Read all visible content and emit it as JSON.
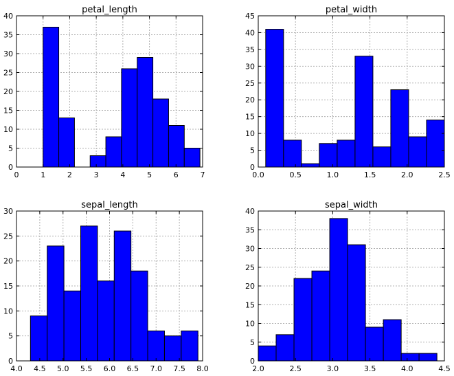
{
  "chart_data": [
    {
      "type": "bar",
      "title": "petal_length",
      "xlabel": "",
      "ylabel": "",
      "bin_edges": [
        1.0,
        1.59,
        2.18,
        2.77,
        3.36,
        3.95,
        4.54,
        5.13,
        5.72,
        6.31,
        6.9
      ],
      "values": [
        37,
        13,
        0,
        3,
        8,
        26,
        29,
        18,
        11,
        5
      ],
      "xlim": [
        0,
        7
      ],
      "ylim": [
        0,
        40
      ],
      "xticks": [
        0,
        1,
        2,
        3,
        4,
        5,
        6,
        7
      ],
      "xtick_labels": [
        "0",
        "1",
        "2",
        "3",
        "4",
        "5",
        "6",
        "7"
      ],
      "yticks": [
        0,
        5,
        10,
        15,
        20,
        25,
        30,
        35,
        40
      ],
      "ytick_labels": [
        "0",
        "5",
        "10",
        "15",
        "20",
        "25",
        "30",
        "35",
        "40"
      ],
      "grid": true
    },
    {
      "type": "bar",
      "title": "petal_width",
      "xlabel": "",
      "ylabel": "",
      "bin_edges": [
        0.1,
        0.34,
        0.58,
        0.82,
        1.06,
        1.3,
        1.54,
        1.78,
        2.02,
        2.26,
        2.5
      ],
      "values": [
        41,
        8,
        1,
        7,
        8,
        33,
        6,
        23,
        9,
        14
      ],
      "xlim": [
        0,
        2.5
      ],
      "ylim": [
        0,
        45
      ],
      "xticks": [
        0,
        0.5,
        1.0,
        1.5,
        2.0,
        2.5
      ],
      "xtick_labels": [
        "0.0",
        "0.5",
        "1.0",
        "1.5",
        "2.0",
        "2.5"
      ],
      "yticks": [
        0,
        5,
        10,
        15,
        20,
        25,
        30,
        35,
        40,
        45
      ],
      "ytick_labels": [
        "0",
        "5",
        "10",
        "15",
        "20",
        "25",
        "30",
        "35",
        "40",
        "45"
      ],
      "grid": true
    },
    {
      "type": "bar",
      "title": "sepal_length",
      "xlabel": "",
      "ylabel": "",
      "bin_edges": [
        4.3,
        4.66,
        5.02,
        5.38,
        5.74,
        6.1,
        6.46,
        6.82,
        7.18,
        7.54,
        7.9
      ],
      "values": [
        9,
        23,
        14,
        27,
        16,
        26,
        18,
        6,
        5,
        6
      ],
      "xlim": [
        4.0,
        8.0
      ],
      "ylim": [
        0,
        30
      ],
      "xticks": [
        4.0,
        4.5,
        5.0,
        5.5,
        6.0,
        6.5,
        7.0,
        7.5,
        8.0
      ],
      "xtick_labels": [
        "4.0",
        "4.5",
        "5.0",
        "5.5",
        "6.0",
        "6.5",
        "7.0",
        "7.5",
        "8.0"
      ],
      "yticks": [
        0,
        5,
        10,
        15,
        20,
        25,
        30
      ],
      "ytick_labels": [
        "0",
        "5",
        "10",
        "15",
        "20",
        "25",
        "30"
      ],
      "grid": true
    },
    {
      "type": "bar",
      "title": "sepal_width",
      "xlabel": "",
      "ylabel": "",
      "bin_edges": [
        2.0,
        2.24,
        2.48,
        2.72,
        2.96,
        3.2,
        3.44,
        3.68,
        3.92,
        4.16,
        4.4
      ],
      "values": [
        4,
        7,
        22,
        24,
        38,
        31,
        9,
        11,
        2,
        2
      ],
      "xlim": [
        2.0,
        4.5
      ],
      "ylim": [
        0,
        40
      ],
      "xticks": [
        2.0,
        2.5,
        3.0,
        3.5,
        4.0,
        4.5
      ],
      "xtick_labels": [
        "2.0",
        "2.5",
        "3.0",
        "3.5",
        "4.0",
        "4.5"
      ],
      "yticks": [
        0,
        5,
        10,
        15,
        20,
        25,
        30,
        35,
        40
      ],
      "ytick_labels": [
        "0",
        "5",
        "10",
        "15",
        "20",
        "25",
        "30",
        "35",
        "40"
      ],
      "grid": true
    }
  ],
  "colors": {
    "bar_fill": "#0000ff",
    "bar_edge": "#000000",
    "grid": "#b0b0b0",
    "frame": "#000000"
  }
}
